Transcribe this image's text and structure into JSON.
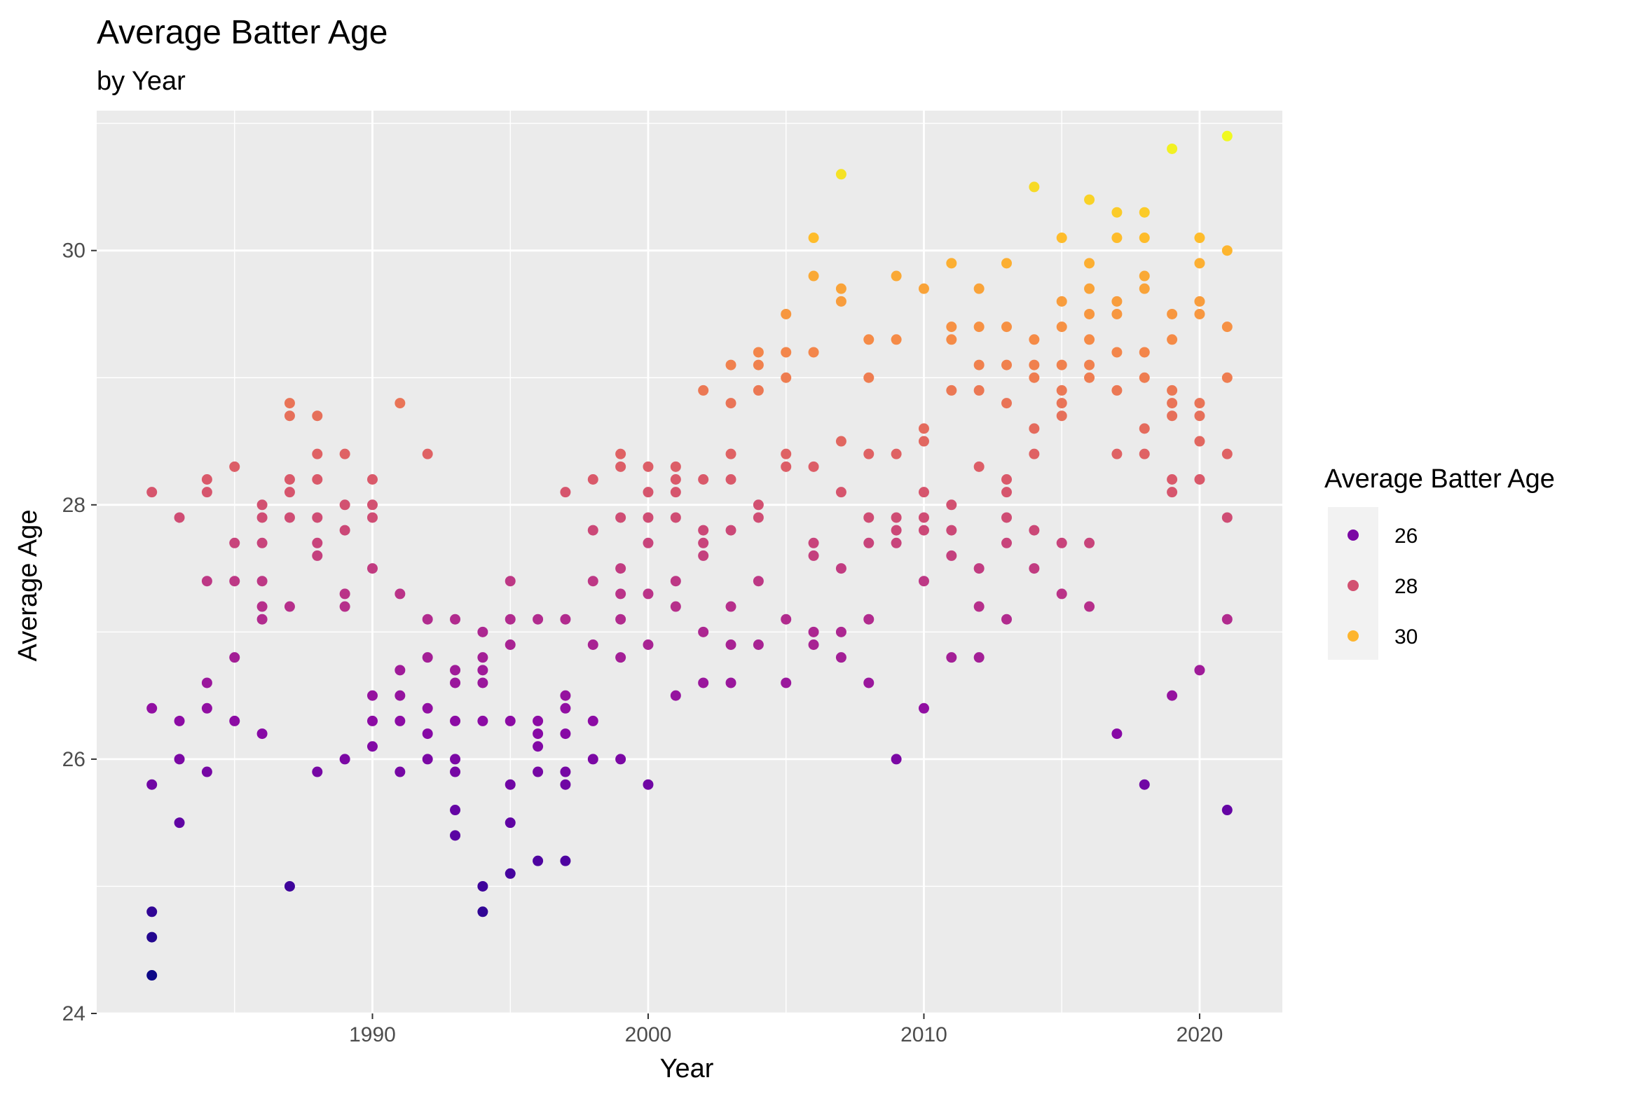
{
  "chart_data": {
    "type": "scatter",
    "title": "Average Batter Age",
    "subtitle": "by Year",
    "xlabel": "Year",
    "ylabel": "Average Age",
    "xlim": [
      1980,
      2023
    ],
    "ylim": [
      24,
      31.1
    ],
    "x_ticks": [
      1990,
      2000,
      2010,
      2020
    ],
    "y_ticks": [
      24,
      26,
      28,
      30
    ],
    "grid": true,
    "color_scale": "plasma",
    "color_domain": [
      24.3,
      30.9
    ],
    "legend": {
      "title": "Average Batter Age",
      "position": "right",
      "entries": [
        {
          "label": "26",
          "value": 26
        },
        {
          "label": "28",
          "value": 28
        },
        {
          "label": "30",
          "value": 30
        }
      ]
    },
    "points": [
      [
        1982,
        28.1
      ],
      [
        1982,
        26.4
      ],
      [
        1982,
        25.8
      ],
      [
        1982,
        24.8
      ],
      [
        1982,
        24.6
      ],
      [
        1982,
        24.3
      ],
      [
        1983,
        27.9
      ],
      [
        1983,
        26.3
      ],
      [
        1983,
        26.0
      ],
      [
        1983,
        25.5
      ],
      [
        1984,
        28.2
      ],
      [
        1984,
        28.1
      ],
      [
        1984,
        27.4
      ],
      [
        1984,
        26.6
      ],
      [
        1984,
        26.4
      ],
      [
        1984,
        25.9
      ],
      [
        1985,
        28.3
      ],
      [
        1985,
        27.7
      ],
      [
        1985,
        27.4
      ],
      [
        1985,
        26.8
      ],
      [
        1985,
        26.3
      ],
      [
        1986,
        28.0
      ],
      [
        1986,
        27.9
      ],
      [
        1986,
        27.7
      ],
      [
        1986,
        27.4
      ],
      [
        1986,
        27.2
      ],
      [
        1986,
        27.1
      ],
      [
        1986,
        26.2
      ],
      [
        1987,
        28.8
      ],
      [
        1987,
        28.7
      ],
      [
        1987,
        28.2
      ],
      [
        1987,
        28.1
      ],
      [
        1987,
        27.9
      ],
      [
        1987,
        27.2
      ],
      [
        1987,
        25.0
      ],
      [
        1988,
        28.7
      ],
      [
        1988,
        28.4
      ],
      [
        1988,
        28.2
      ],
      [
        1988,
        27.9
      ],
      [
        1988,
        27.7
      ],
      [
        1988,
        27.6
      ],
      [
        1988,
        25.9
      ],
      [
        1989,
        28.4
      ],
      [
        1989,
        28.0
      ],
      [
        1989,
        27.8
      ],
      [
        1989,
        27.3
      ],
      [
        1989,
        27.2
      ],
      [
        1989,
        26.0
      ],
      [
        1990,
        28.2
      ],
      [
        1990,
        28.0
      ],
      [
        1990,
        27.9
      ],
      [
        1990,
        27.5
      ],
      [
        1990,
        26.5
      ],
      [
        1990,
        26.3
      ],
      [
        1990,
        26.1
      ],
      [
        1991,
        28.8
      ],
      [
        1991,
        27.3
      ],
      [
        1991,
        26.7
      ],
      [
        1991,
        26.5
      ],
      [
        1991,
        26.3
      ],
      [
        1991,
        25.9
      ],
      [
        1992,
        28.4
      ],
      [
        1992,
        27.1
      ],
      [
        1992,
        26.8
      ],
      [
        1992,
        26.4
      ],
      [
        1992,
        26.2
      ],
      [
        1992,
        26.0
      ],
      [
        1993,
        27.1
      ],
      [
        1993,
        26.7
      ],
      [
        1993,
        26.6
      ],
      [
        1993,
        26.3
      ],
      [
        1993,
        26.0
      ],
      [
        1993,
        25.9
      ],
      [
        1993,
        25.6
      ],
      [
        1993,
        25.4
      ],
      [
        1994,
        27.0
      ],
      [
        1994,
        26.8
      ],
      [
        1994,
        26.7
      ],
      [
        1994,
        26.6
      ],
      [
        1994,
        26.3
      ],
      [
        1994,
        25.0
      ],
      [
        1994,
        24.8
      ],
      [
        1995,
        27.4
      ],
      [
        1995,
        27.1
      ],
      [
        1995,
        26.9
      ],
      [
        1995,
        26.3
      ],
      [
        1995,
        25.8
      ],
      [
        1995,
        25.5
      ],
      [
        1995,
        25.1
      ],
      [
        1996,
        27.1
      ],
      [
        1996,
        26.3
      ],
      [
        1996,
        26.2
      ],
      [
        1996,
        26.1
      ],
      [
        1996,
        25.9
      ],
      [
        1996,
        25.2
      ],
      [
        1997,
        28.1
      ],
      [
        1997,
        27.1
      ],
      [
        1997,
        26.5
      ],
      [
        1997,
        26.4
      ],
      [
        1997,
        26.2
      ],
      [
        1997,
        25.9
      ],
      [
        1997,
        25.8
      ],
      [
        1997,
        25.2
      ],
      [
        1998,
        28.2
      ],
      [
        1998,
        27.8
      ],
      [
        1998,
        27.4
      ],
      [
        1998,
        26.9
      ],
      [
        1998,
        26.3
      ],
      [
        1998,
        26.0
      ],
      [
        1999,
        28.4
      ],
      [
        1999,
        28.3
      ],
      [
        1999,
        27.9
      ],
      [
        1999,
        27.5
      ],
      [
        1999,
        27.3
      ],
      [
        1999,
        27.1
      ],
      [
        1999,
        26.8
      ],
      [
        1999,
        26.0
      ],
      [
        2000,
        28.3
      ],
      [
        2000,
        28.1
      ],
      [
        2000,
        27.9
      ],
      [
        2000,
        27.7
      ],
      [
        2000,
        27.3
      ],
      [
        2000,
        26.9
      ],
      [
        2000,
        25.8
      ],
      [
        2001,
        28.3
      ],
      [
        2001,
        28.2
      ],
      [
        2001,
        28.1
      ],
      [
        2001,
        27.9
      ],
      [
        2001,
        27.4
      ],
      [
        2001,
        27.2
      ],
      [
        2001,
        26.5
      ],
      [
        2002,
        28.9
      ],
      [
        2002,
        28.2
      ],
      [
        2002,
        27.8
      ],
      [
        2002,
        27.7
      ],
      [
        2002,
        27.6
      ],
      [
        2002,
        27.0
      ],
      [
        2002,
        26.6
      ],
      [
        2003,
        29.1
      ],
      [
        2003,
        28.8
      ],
      [
        2003,
        28.4
      ],
      [
        2003,
        28.2
      ],
      [
        2003,
        27.8
      ],
      [
        2003,
        27.2
      ],
      [
        2003,
        26.9
      ],
      [
        2003,
        26.6
      ],
      [
        2004,
        29.2
      ],
      [
        2004,
        29.1
      ],
      [
        2004,
        28.9
      ],
      [
        2004,
        28.0
      ],
      [
        2004,
        27.9
      ],
      [
        2004,
        27.4
      ],
      [
        2004,
        26.9
      ],
      [
        2005,
        29.5
      ],
      [
        2005,
        29.2
      ],
      [
        2005,
        29.0
      ],
      [
        2005,
        28.4
      ],
      [
        2005,
        28.3
      ],
      [
        2005,
        27.1
      ],
      [
        2005,
        26.6
      ],
      [
        2006,
        30.1
      ],
      [
        2006,
        29.8
      ],
      [
        2006,
        29.2
      ],
      [
        2006,
        28.3
      ],
      [
        2006,
        27.7
      ],
      [
        2006,
        27.6
      ],
      [
        2006,
        27.0
      ],
      [
        2006,
        26.9
      ],
      [
        2007,
        30.6
      ],
      [
        2007,
        29.7
      ],
      [
        2007,
        29.6
      ],
      [
        2007,
        28.5
      ],
      [
        2007,
        28.1
      ],
      [
        2007,
        27.5
      ],
      [
        2007,
        27.0
      ],
      [
        2007,
        26.8
      ],
      [
        2008,
        29.3
      ],
      [
        2008,
        29.0
      ],
      [
        2008,
        28.4
      ],
      [
        2008,
        27.9
      ],
      [
        2008,
        27.7
      ],
      [
        2008,
        27.1
      ],
      [
        2008,
        26.6
      ],
      [
        2009,
        29.8
      ],
      [
        2009,
        29.3
      ],
      [
        2009,
        28.4
      ],
      [
        2009,
        27.9
      ],
      [
        2009,
        27.8
      ],
      [
        2009,
        27.7
      ],
      [
        2009,
        26.0
      ],
      [
        2010,
        29.7
      ],
      [
        2010,
        28.6
      ],
      [
        2010,
        28.5
      ],
      [
        2010,
        28.1
      ],
      [
        2010,
        27.9
      ],
      [
        2010,
        27.8
      ],
      [
        2010,
        27.4
      ],
      [
        2010,
        26.4
      ],
      [
        2011,
        29.9
      ],
      [
        2011,
        29.4
      ],
      [
        2011,
        29.3
      ],
      [
        2011,
        28.9
      ],
      [
        2011,
        28.0
      ],
      [
        2011,
        27.8
      ],
      [
        2011,
        27.6
      ],
      [
        2011,
        26.8
      ],
      [
        2012,
        29.7
      ],
      [
        2012,
        29.4
      ],
      [
        2012,
        29.1
      ],
      [
        2012,
        28.9
      ],
      [
        2012,
        28.3
      ],
      [
        2012,
        27.5
      ],
      [
        2012,
        27.2
      ],
      [
        2012,
        26.8
      ],
      [
        2013,
        29.9
      ],
      [
        2013,
        29.4
      ],
      [
        2013,
        29.1
      ],
      [
        2013,
        28.8
      ],
      [
        2013,
        28.2
      ],
      [
        2013,
        28.1
      ],
      [
        2013,
        27.9
      ],
      [
        2013,
        27.7
      ],
      [
        2013,
        27.1
      ],
      [
        2014,
        30.5
      ],
      [
        2014,
        29.3
      ],
      [
        2014,
        29.1
      ],
      [
        2014,
        29.0
      ],
      [
        2014,
        28.6
      ],
      [
        2014,
        28.4
      ],
      [
        2014,
        27.8
      ],
      [
        2014,
        27.5
      ],
      [
        2015,
        30.1
      ],
      [
        2015,
        29.6
      ],
      [
        2015,
        29.4
      ],
      [
        2015,
        29.1
      ],
      [
        2015,
        28.9
      ],
      [
        2015,
        28.8
      ],
      [
        2015,
        28.7
      ],
      [
        2015,
        27.7
      ],
      [
        2015,
        27.3
      ],
      [
        2016,
        30.4
      ],
      [
        2016,
        29.9
      ],
      [
        2016,
        29.7
      ],
      [
        2016,
        29.5
      ],
      [
        2016,
        29.3
      ],
      [
        2016,
        29.1
      ],
      [
        2016,
        29.0
      ],
      [
        2016,
        27.7
      ],
      [
        2016,
        27.2
      ],
      [
        2017,
        30.3
      ],
      [
        2017,
        30.1
      ],
      [
        2017,
        29.6
      ],
      [
        2017,
        29.5
      ],
      [
        2017,
        29.2
      ],
      [
        2017,
        28.9
      ],
      [
        2017,
        28.4
      ],
      [
        2017,
        26.2
      ],
      [
        2018,
        30.3
      ],
      [
        2018,
        30.1
      ],
      [
        2018,
        29.8
      ],
      [
        2018,
        29.7
      ],
      [
        2018,
        29.2
      ],
      [
        2018,
        29.0
      ],
      [
        2018,
        28.6
      ],
      [
        2018,
        28.4
      ],
      [
        2018,
        25.8
      ],
      [
        2019,
        30.8
      ],
      [
        2019,
        29.5
      ],
      [
        2019,
        29.3
      ],
      [
        2019,
        28.9
      ],
      [
        2019,
        28.8
      ],
      [
        2019,
        28.7
      ],
      [
        2019,
        28.2
      ],
      [
        2019,
        28.1
      ],
      [
        2019,
        26.5
      ],
      [
        2020,
        30.1
      ],
      [
        2020,
        29.9
      ],
      [
        2020,
        29.6
      ],
      [
        2020,
        29.5
      ],
      [
        2020,
        28.8
      ],
      [
        2020,
        28.7
      ],
      [
        2020,
        28.5
      ],
      [
        2020,
        28.2
      ],
      [
        2020,
        26.7
      ],
      [
        2021,
        30.9
      ],
      [
        2021,
        30.0
      ],
      [
        2021,
        29.4
      ],
      [
        2021,
        29.0
      ],
      [
        2021,
        28.4
      ],
      [
        2021,
        27.9
      ],
      [
        2021,
        27.1
      ],
      [
        2021,
        25.6
      ]
    ]
  }
}
